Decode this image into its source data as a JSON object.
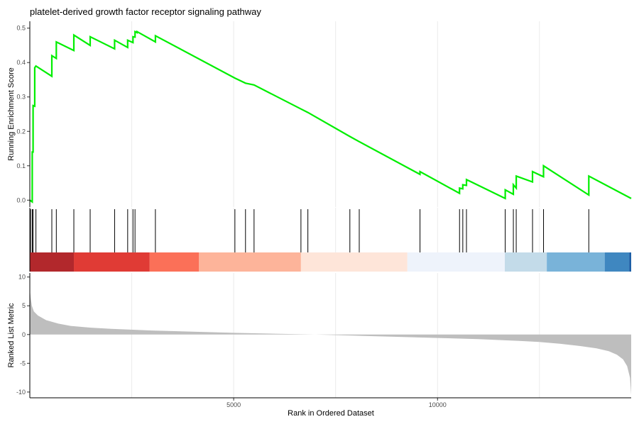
{
  "chart_data": {
    "type": "line",
    "title": "platelet-derived growth factor receptor signaling pathway",
    "xlabel": "Rank in Ordered Dataset",
    "x_ticks": [
      5000,
      10000
    ],
    "xlim": [
      0,
      14750
    ],
    "grid": true,
    "colors": {
      "es_line": "#00ee00",
      "hits": "#000000",
      "metric_fill": "#bebebe",
      "grid": "#ebebeb"
    },
    "panels": [
      {
        "name": "running-enrichment",
        "ylabel": "Running Enrichment Score",
        "ylim": [
          -0.02,
          0.52
        ],
        "y_ticks": [
          0.0,
          0.1,
          0.2,
          0.3,
          0.4,
          0.5
        ],
        "y_tick_labels": [
          "0.0",
          "0.1",
          "0.2",
          "0.3",
          "0.4",
          "0.5"
        ],
        "series": [
          {
            "x": [
              0,
              60,
              60,
              80,
              80,
              120,
              120,
              150,
              150,
              540,
              540,
              650,
              650,
              1080,
              1080,
              1480,
              1480,
              2080,
              2080,
              2400,
              2400,
              2530,
              2530,
              2580,
              2580,
              2630,
              2630,
              3080,
              3080,
              5030,
              5030,
              5290,
              5290,
              5500,
              5500,
              6650,
              6650,
              6820,
              6820,
              7850,
              7850,
              8080,
              8080,
              9570,
              9570,
              10540,
              10540,
              10620,
              10620,
              10710,
              10710,
              11660,
              11660,
              11860,
              11860,
              11930,
              11930,
              12330,
              12330,
              12600,
              12600,
              13710,
              13710,
              14750
            ],
            "y": [
              0.0,
              -0.005,
              0.14,
              0.14,
              0.275,
              0.273,
              0.385,
              0.39,
              0.39,
              0.36,
              0.42,
              0.412,
              0.46,
              0.435,
              0.48,
              0.45,
              0.475,
              0.44,
              0.465,
              0.444,
              0.465,
              0.458,
              0.475,
              0.474,
              0.49,
              0.487,
              0.49,
              0.46,
              0.478,
              0.355,
              0.355,
              0.34,
              0.34,
              0.335,
              0.335,
              0.265,
              0.265,
              0.255,
              0.255,
              0.185,
              0.185,
              0.17,
              0.17,
              0.075,
              0.083,
              0.02,
              0.035,
              0.033,
              0.045,
              0.043,
              0.06,
              0.005,
              0.03,
              0.017,
              0.045,
              0.035,
              0.07,
              0.053,
              0.083,
              0.068,
              0.1,
              0.015,
              0.07,
              0.005
            ]
          }
        ]
      },
      {
        "name": "hits",
        "hit_ranks": [
          20,
          60,
          80,
          150,
          540,
          650,
          1080,
          1480,
          2080,
          2400,
          2530,
          2580,
          3080,
          5030,
          5290,
          5500,
          6650,
          6820,
          7850,
          8080,
          9570,
          10540,
          10620,
          10710,
          11660,
          11860,
          11930,
          12330,
          12600,
          13710
        ],
        "color_bands": [
          {
            "from": 0,
            "to": 1080,
            "color": "#b2282c"
          },
          {
            "from": 1080,
            "to": 2940,
            "color": "#e03b35"
          },
          {
            "from": 2940,
            "to": 4150,
            "color": "#fb7058"
          },
          {
            "from": 4150,
            "to": 6650,
            "color": "#fdb49a"
          },
          {
            "from": 6650,
            "to": 9260,
            "color": "#fee5d9"
          },
          {
            "from": 9260,
            "to": 11650,
            "color": "#eef3fb"
          },
          {
            "from": 11650,
            "to": 12680,
            "color": "#c3dbe9"
          },
          {
            "from": 12680,
            "to": 14100,
            "color": "#79b3d9"
          },
          {
            "from": 14100,
            "to": 14700,
            "color": "#3f87c0"
          },
          {
            "from": 14700,
            "to": 14750,
            "color": "#1d5fa6"
          }
        ]
      },
      {
        "name": "ranked-list-metric",
        "ylabel": "Ranked List Metric",
        "ylim": [
          -11,
          10.7
        ],
        "y_ticks": [
          10,
          5,
          0,
          -5,
          -10
        ],
        "y_tick_labels": [
          "10",
          "5",
          "0",
          "-5",
          "-10"
        ],
        "area": {
          "x": [
            0,
            20,
            50,
            100,
            200,
            400,
            700,
            1000,
            1500,
            2000,
            3000,
            4000,
            5000,
            6000,
            7000,
            8000,
            9000,
            10000,
            11000,
            12000,
            12500,
            13000,
            13500,
            13900,
            14200,
            14400,
            14550,
            14650,
            14720,
            14750
          ],
          "y": [
            8,
            6.5,
            5,
            4,
            3.3,
            2.5,
            1.9,
            1.5,
            1.2,
            1.0,
            0.7,
            0.5,
            0.3,
            0.15,
            0.0,
            -0.2,
            -0.4,
            -0.6,
            -0.8,
            -1.1,
            -1.3,
            -1.6,
            -2.0,
            -2.4,
            -2.9,
            -3.5,
            -4.3,
            -5.5,
            -7.5,
            -10.5
          ]
        }
      }
    ]
  }
}
